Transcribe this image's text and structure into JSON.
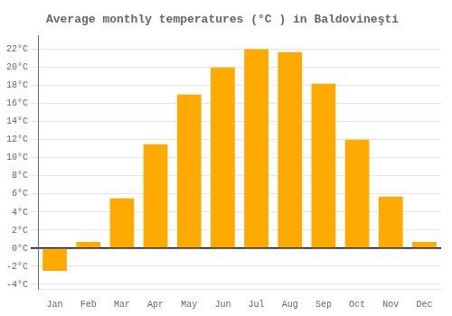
{
  "chart_data": {
    "type": "bar",
    "title": "Average monthly temperatures (°C ) in Baldovineşti",
    "categories": [
      "Jan",
      "Feb",
      "Mar",
      "Apr",
      "May",
      "Jun",
      "Jul",
      "Aug",
      "Sep",
      "Oct",
      "Nov",
      "Dec"
    ],
    "values": [
      -2.5,
      0.7,
      5.5,
      11.5,
      17.0,
      20.0,
      22.0,
      21.7,
      18.2,
      12.0,
      5.7,
      0.7
    ],
    "color": "#FFAA00",
    "ylim": [
      -4.5,
      23.5
    ],
    "yticks": [
      {
        "value": -4,
        "label": "-4°C"
      },
      {
        "value": -2,
        "label": "-2°C"
      },
      {
        "value": 0,
        "label": "0°C"
      },
      {
        "value": 2,
        "label": "2°C"
      },
      {
        "value": 4,
        "label": "4°C"
      },
      {
        "value": 6,
        "label": "6°C"
      },
      {
        "value": 8,
        "label": "8°C"
      },
      {
        "value": 10,
        "label": "10°C"
      },
      {
        "value": 12,
        "label": "12°C"
      },
      {
        "value": 14,
        "label": "14°C"
      },
      {
        "value": 16,
        "label": "16°C"
      },
      {
        "value": 18,
        "label": "18°C"
      },
      {
        "value": 20,
        "label": "20°C"
      },
      {
        "value": 22,
        "label": "22°C"
      }
    ],
    "grid": true
  }
}
